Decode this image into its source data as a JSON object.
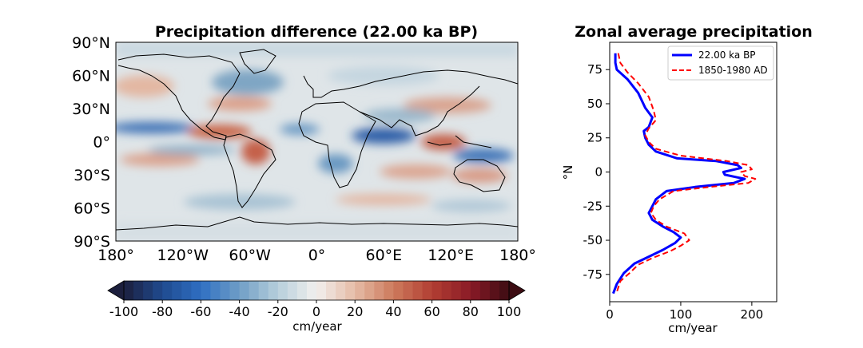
{
  "chart_data": [
    {
      "type": "heatmap",
      "title": "Precipitation difference (22.00 ka BP)",
      "x_ticks": [
        "180°",
        "120°W",
        "60°W",
        "0°",
        "60°E",
        "120°E",
        "180°"
      ],
      "y_ticks": [
        "90°N",
        "60°N",
        "30°N",
        "0°",
        "30°S",
        "60°S",
        "90°S"
      ],
      "x_range_deg": [
        -180,
        180
      ],
      "y_range_deg": [
        -90,
        90
      ],
      "colorbar": {
        "label": "cm/year",
        "range": [
          -100,
          100
        ],
        "ticks": [
          "-100",
          "-80",
          "-60",
          "-40",
          "-20",
          "0",
          "20",
          "40",
          "60",
          "80",
          "100"
        ],
        "extend": "both",
        "colors": [
          "#1c1f3d",
          "#1f4a8f",
          "#2f6fc2",
          "#6f9ec6",
          "#b7cfdc",
          "#f2f0ee",
          "#e5bba6",
          "#cd7a5c",
          "#b23e33",
          "#8a1a26",
          "#3c0c12"
        ]
      }
    },
    {
      "type": "line",
      "title": "Zonal average precipitation",
      "xlabel": "cm/year",
      "ylabel": "°N",
      "xlim": [
        0,
        235
      ],
      "ylim": [
        -95,
        95
      ],
      "x_ticks": [
        "0",
        "100",
        "200"
      ],
      "y_ticks": [
        "75",
        "50",
        "25",
        "0",
        "-25",
        "-50",
        "-75"
      ],
      "legend_position": "top-right",
      "series": [
        {
          "name": "22.00 ka BP",
          "color": "#0000ff",
          "style": "solid",
          "points": [
            [
              8,
              87
            ],
            [
              8,
              80
            ],
            [
              10,
              75
            ],
            [
              25,
              68
            ],
            [
              40,
              58
            ],
            [
              50,
              47
            ],
            [
              60,
              40
            ],
            [
              55,
              33
            ],
            [
              48,
              30
            ],
            [
              50,
              25
            ],
            [
              55,
              20
            ],
            [
              65,
              15
            ],
            [
              95,
              10
            ],
            [
              150,
              8
            ],
            [
              180,
              5
            ],
            [
              185,
              3
            ],
            [
              160,
              0
            ],
            [
              162,
              -2
            ],
            [
              180,
              -4
            ],
            [
              190,
              -5
            ],
            [
              175,
              -8
            ],
            [
              120,
              -11
            ],
            [
              80,
              -14
            ],
            [
              65,
              -20
            ],
            [
              60,
              -25
            ],
            [
              55,
              -30
            ],
            [
              60,
              -35
            ],
            [
              75,
              -40
            ],
            [
              90,
              -44
            ],
            [
              100,
              -48
            ],
            [
              92,
              -52
            ],
            [
              75,
              -57
            ],
            [
              55,
              -62
            ],
            [
              35,
              -67
            ],
            [
              20,
              -74
            ],
            [
              10,
              -82
            ],
            [
              5,
              -89
            ]
          ]
        },
        {
          "name": "1850-1980 AD",
          "color": "#ff0000",
          "style": "dashed",
          "points": [
            [
              12,
              87
            ],
            [
              15,
              80
            ],
            [
              25,
              73
            ],
            [
              40,
              65
            ],
            [
              55,
              55
            ],
            [
              62,
              45
            ],
            [
              65,
              38
            ],
            [
              55,
              32
            ],
            [
              50,
              27
            ],
            [
              55,
              22
            ],
            [
              65,
              17
            ],
            [
              100,
              12
            ],
            [
              165,
              8
            ],
            [
              195,
              5
            ],
            [
              200,
              2
            ],
            [
              185,
              0
            ],
            [
              190,
              -3
            ],
            [
              205,
              -5
            ],
            [
              195,
              -8
            ],
            [
              140,
              -11
            ],
            [
              90,
              -14
            ],
            [
              70,
              -20
            ],
            [
              62,
              -25
            ],
            [
              58,
              -30
            ],
            [
              65,
              -35
            ],
            [
              80,
              -40
            ],
            [
              105,
              -45
            ],
            [
              112,
              -50
            ],
            [
              100,
              -54
            ],
            [
              85,
              -58
            ],
            [
              60,
              -63
            ],
            [
              40,
              -68
            ],
            [
              28,
              -74
            ],
            [
              15,
              -80
            ],
            [
              10,
              -88
            ]
          ]
        }
      ]
    }
  ]
}
